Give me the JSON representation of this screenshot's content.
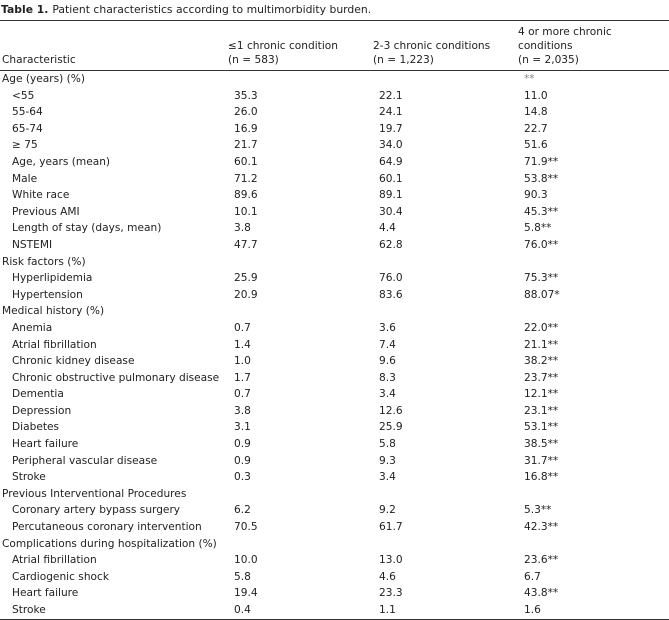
{
  "caption": {
    "label": "Table 1.",
    "text": "Patient characteristics according to multimorbidity burden."
  },
  "table": {
    "header": [
      [
        "Characteristic"
      ],
      [
        "≤1 chronic condition",
        "(n = 583)"
      ],
      [
        "2-3 chronic conditions",
        "(n = 1,223)"
      ],
      [
        "4 or more chronic conditions",
        "(n = 2,035)"
      ]
    ],
    "sections": [
      {
        "label": "Age (years) (%)",
        "flag": "**",
        "rows": [
          [
            "<55",
            "35.3",
            "22.1",
            "11.0"
          ],
          [
            "55-64",
            "26.0",
            "24.1",
            "14.8"
          ],
          [
            "65-74",
            "16.9",
            "19.7",
            "22.7"
          ],
          [
            "≥ 75",
            "21.7",
            "34.0",
            "51.6"
          ],
          [
            "Age, years (mean)",
            "60.1",
            "64.9",
            "71.9**"
          ],
          [
            "Male",
            "71.2",
            "60.1",
            "53.8**"
          ],
          [
            "White race",
            "89.6",
            "89.1",
            "90.3"
          ],
          [
            "Previous AMI",
            "10.1",
            "30.4",
            "45.3**"
          ],
          [
            "Length of stay (days, mean)",
            "3.8",
            "4.4",
            "5.8**"
          ],
          [
            "NSTEMI",
            "47.7",
            "62.8",
            "76.0**"
          ]
        ]
      },
      {
        "label": "Risk factors (%)",
        "rows": [
          [
            "Hyperlipidemia",
            "25.9",
            "76.0",
            "75.3**"
          ],
          [
            "Hypertension",
            "20.9",
            "83.6",
            "88.07*"
          ]
        ]
      },
      {
        "label": "Medical history (%)",
        "rows": [
          [
            "Anemia",
            "0.7",
            "3.6",
            "22.0**"
          ],
          [
            "Atrial fibrillation",
            "1.4",
            "7.4",
            "21.1**"
          ],
          [
            "Chronic kidney disease",
            "1.0",
            "9.6",
            "38.2**"
          ],
          [
            "Chronic obstructive pulmonary disease",
            "1.7",
            "8.3",
            "23.7**"
          ],
          [
            "Dementia",
            "0.7",
            "3.4",
            "12.1**"
          ],
          [
            "Depression",
            "3.8",
            "12.6",
            "23.1**"
          ],
          [
            "Diabetes",
            "3.1",
            "25.9",
            "53.1**"
          ],
          [
            "Heart failure",
            "0.9",
            "5.8",
            "38.5**"
          ],
          [
            "Peripheral vascular disease",
            "0.9",
            "9.3",
            "31.7**"
          ],
          [
            "Stroke",
            "0.3",
            "3.4",
            "16.8**"
          ]
        ]
      },
      {
        "label": "Previous Interventional Procedures",
        "rows": [
          [
            "Coronary artery bypass surgery",
            "6.2",
            "9.2",
            "5.3**"
          ],
          [
            "Percutaneous coronary intervention",
            "70.5",
            "61.7",
            "42.3**"
          ]
        ]
      },
      {
        "label": "Complications during hospitalization (%)",
        "rows": [
          [
            "Atrial fibrillation",
            "10.0",
            "13.0",
            "23.6**"
          ],
          [
            "Cardiogenic shock",
            "5.8",
            "4.6",
            "6.7"
          ],
          [
            "Heart failure",
            "19.4",
            "23.3",
            "43.8**"
          ],
          [
            "Stroke",
            "0.4",
            "1.1",
            "1.6"
          ]
        ]
      }
    ]
  }
}
